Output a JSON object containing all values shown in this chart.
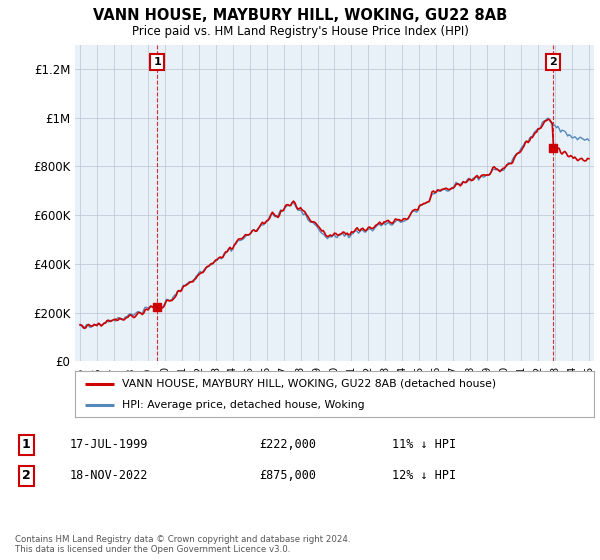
{
  "title": "VANN HOUSE, MAYBURY HILL, WOKING, GU22 8AB",
  "subtitle": "Price paid vs. HM Land Registry's House Price Index (HPI)",
  "ylabel_ticks": [
    "£0",
    "£200K",
    "£400K",
    "£600K",
    "£800K",
    "£1M",
    "£1.2M"
  ],
  "ytick_values": [
    0,
    200000,
    400000,
    600000,
    800000,
    1000000,
    1200000
  ],
  "ylim": [
    0,
    1300000
  ],
  "xlim_start": 1994.7,
  "xlim_end": 2025.3,
  "sale1_year": 1999.54,
  "sale1_price": 222000,
  "sale2_year": 2022.88,
  "sale2_price": 875000,
  "legend_house": "VANN HOUSE, MAYBURY HILL, WOKING, GU22 8AB (detached house)",
  "legend_hpi": "HPI: Average price, detached house, Woking",
  "house_color": "#cc0000",
  "hpi_color": "#5588bb",
  "chart_bg": "#e8f0f8",
  "footnote": "Contains HM Land Registry data © Crown copyright and database right 2024.\nThis data is licensed under the Open Government Licence v3.0.",
  "background_color": "#ffffff",
  "grid_color": "#c0ccd8"
}
